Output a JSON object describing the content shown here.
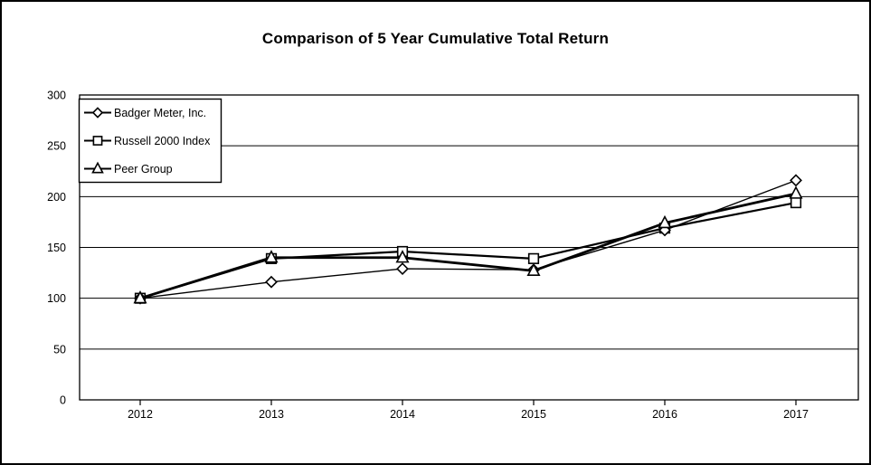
{
  "chart_data": {
    "type": "line",
    "title": "Comparison of 5 Year Cumulative Total Return",
    "xlabel": "",
    "ylabel": "",
    "categories": [
      "2012",
      "2013",
      "2014",
      "2015",
      "2016",
      "2017"
    ],
    "series": [
      {
        "name": "Badger Meter, Inc.",
        "marker": "diamond",
        "values": [
          100,
          116,
          129,
          128,
          167,
          216
        ],
        "line_width": 1.4,
        "z": 2
      },
      {
        "name": "Russell 2000 Index",
        "marker": "square",
        "values": [
          100,
          139,
          146,
          139,
          169,
          194
        ],
        "line_width": 2.2,
        "z": 1
      },
      {
        "name": "Peer Group",
        "marker": "triangle",
        "values": [
          100,
          140,
          140,
          127,
          174,
          203
        ],
        "line_width": 2.8,
        "z": 3
      }
    ],
    "ylim": [
      0,
      300
    ],
    "yticks": [
      0,
      50,
      100,
      150,
      200,
      250,
      300
    ],
    "grid": "horizontal",
    "legend_position": "top-left-inside",
    "colors": {
      "line": "#000000",
      "background": "#ffffff",
      "marker_fill": "#ffffff",
      "plot_border": "#000000"
    }
  }
}
